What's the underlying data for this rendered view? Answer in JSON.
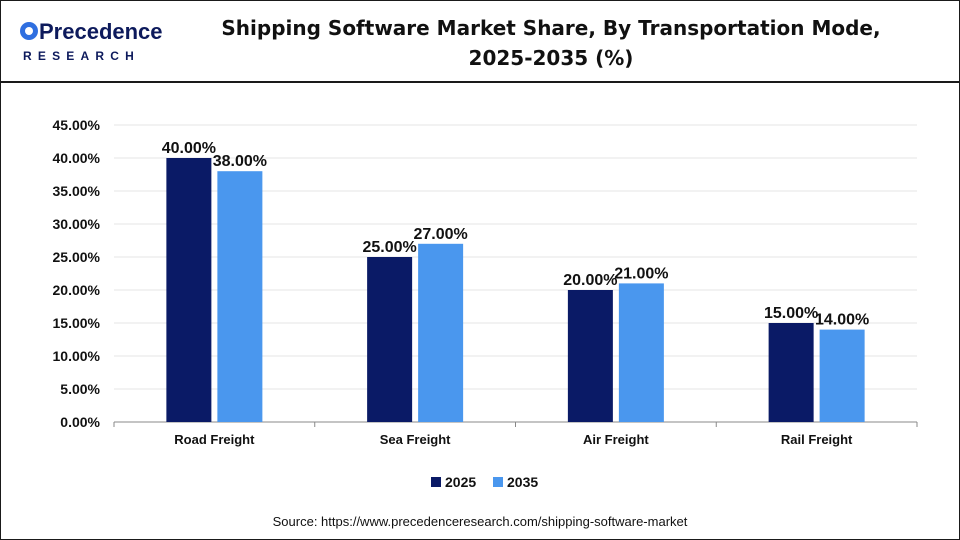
{
  "brand": {
    "logo_text_top": "Precedence",
    "logo_text_bottom": "RESEARCH",
    "colors": {
      "logo_dark": "#0d1a5c",
      "logo_blue": "#2f6fe0"
    }
  },
  "header": {
    "title_line1": "Shipping Software Market Share, By Transportation Mode,",
    "title_line2": "2025-2035 (%)"
  },
  "chart_data": {
    "type": "bar",
    "categories": [
      "Road Freight",
      "Sea Freight",
      "Air Freight",
      "Rail Freight"
    ],
    "series": [
      {
        "name": "2025",
        "values": [
          40.0,
          25.0,
          20.0,
          15.0
        ],
        "color": "#0a1a66",
        "labels": [
          "40.00%",
          "25.00%",
          "20.00%",
          "15.00%"
        ]
      },
      {
        "name": "2035",
        "values": [
          38.0,
          27.0,
          21.0,
          14.0
        ],
        "color": "#4a97ee",
        "labels": [
          "38.00%",
          "27.00%",
          "21.00%",
          "14.00%"
        ]
      }
    ],
    "y_ticks": [
      "0.00%",
      "5.00%",
      "10.00%",
      "15.00%",
      "20.00%",
      "25.00%",
      "30.00%",
      "35.00%",
      "40.00%",
      "45.00%"
    ],
    "ylim": [
      0,
      45
    ],
    "grid": true,
    "legend_position": "bottom-center"
  },
  "footer": {
    "source": "Source: https://www.precedenceresearch.com/shipping-software-market"
  }
}
